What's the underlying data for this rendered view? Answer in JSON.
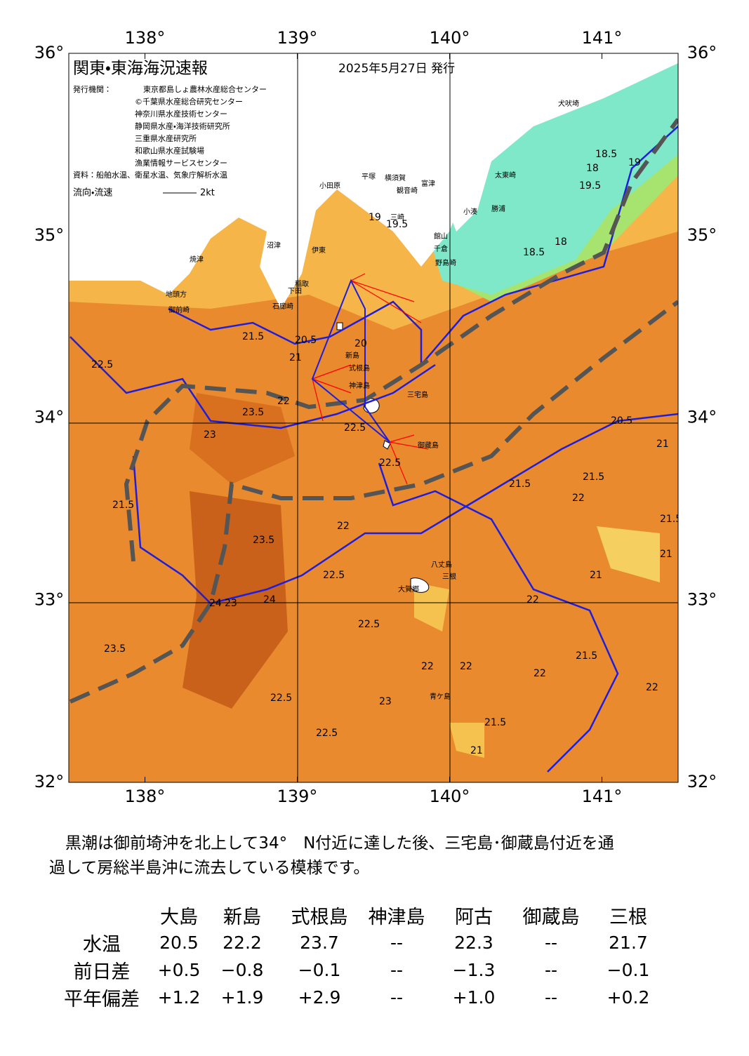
{
  "header": {
    "title": "関東・東海海況速報",
    "date": "2025年5月27日 発行",
    "issuer_label": "発行機関：",
    "issuers": [
      "東京都島しょ農林水産総合センター",
      "©千葉県水産総合研究センター",
      "神奈川県水産技術センター",
      "静岡県水産・海洋技術研究所",
      "三重県水産研究所",
      "和歌山県水産試験場",
      "漁業情報サービスセンター"
    ],
    "source": "資料：船舶水温、衛星水温、気象庁解析水温",
    "current_label": "流向・流速",
    "current_scale": "2kt"
  },
  "map": {
    "xlim": [
      137.5,
      141.5
    ],
    "ylim": [
      32,
      36
    ],
    "lon_ticks": [
      {
        "value": 138,
        "label": "138°"
      },
      {
        "value": 139,
        "label": "139°"
      },
      {
        "value": 140,
        "label": "140°"
      },
      {
        "value": 141,
        "label": "141°"
      }
    ],
    "lat_ticks": [
      {
        "value": 36,
        "label": "36°"
      },
      {
        "value": 35,
        "label": "35°"
      },
      {
        "value": 34,
        "label": "34°"
      },
      {
        "value": 33,
        "label": "33°"
      },
      {
        "value": 32,
        "label": "32°"
      }
    ],
    "place_names": [
      "犬吠埼",
      "太東崎",
      "勝浦",
      "小湊",
      "富津",
      "館山",
      "千倉",
      "野島崎",
      "横須賀",
      "観音崎",
      "三崎",
      "平塚",
      "小田原",
      "伊東",
      "稲取",
      "下田",
      "石廊崎",
      "沼津",
      "焼津",
      "御前崎",
      "地頭方",
      "新島",
      "式根島",
      "神津島",
      "三宅島",
      "御蔵島",
      "八丈島",
      "三根",
      "大賀郷",
      "青ケ島"
    ],
    "contour_labels": [
      "18",
      "18.5",
      "19",
      "19.5",
      "19",
      "19.5",
      "18.5",
      "18",
      "20",
      "20.5",
      "21",
      "21.5",
      "22",
      "22.5",
      "23",
      "23.5",
      "24",
      "22.5",
      "22.5",
      "22",
      "21.5",
      "21.5",
      "21",
      "22",
      "22.5",
      "23",
      "23.5",
      "24",
      "23.5",
      "22.5",
      "22",
      "21.5",
      "21",
      "21.5",
      "22",
      "20.5",
      "21",
      "22.5",
      "22",
      "23",
      "22.5",
      "21.5",
      "22",
      "21",
      "21.5",
      "22"
    ]
  },
  "summary": [
    "　黒潮は御前埼沖を北上して34°　N付近に達した後、三宅島･御蔵島付近を通",
    "過して房総半島沖に流去している模様です。"
  ],
  "table": {
    "columns": [
      "大島",
      "新島",
      "式根島",
      "神津島",
      "阿古",
      "御蔵島",
      "三根"
    ],
    "rows": [
      {
        "label": "水温",
        "cells": [
          "20.5",
          "22.2",
          "23.7",
          "--",
          "22.3",
          "--",
          "21.7"
        ]
      },
      {
        "label": "前日差",
        "cells": [
          "+0.5",
          "−0.8",
          "−0.1",
          "--",
          "−1.3",
          "--",
          "−0.1"
        ]
      },
      {
        "label": "平年偏差",
        "cells": [
          "+1.2",
          "+1.9",
          "+2.9",
          "--",
          "+1.0",
          "--",
          "+0.2"
        ]
      }
    ]
  }
}
